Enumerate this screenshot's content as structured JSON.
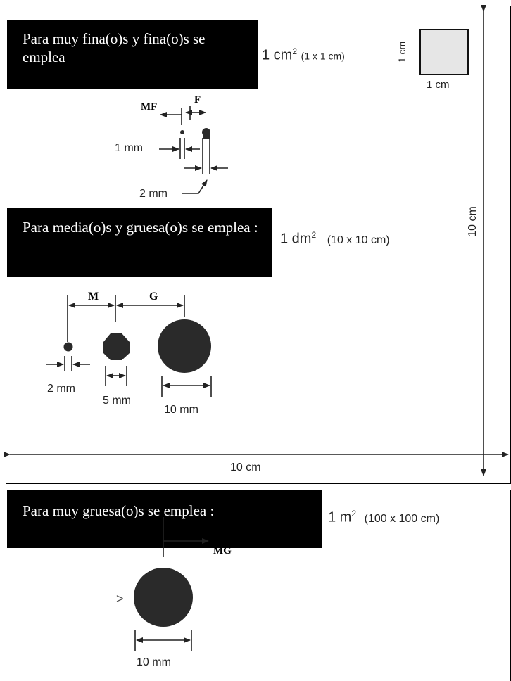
{
  "section_fine": {
    "text": "Para muy fina(o)s y fina(o)s se emplea",
    "area_main": "1 cm",
    "area_exp": "2",
    "area_dims": "(1 x 1 cm)",
    "square_side_label": "1 cm",
    "square_bottom_label": "1 cm",
    "label_mf": "MF",
    "label_f": "F",
    "dim_1mm": "1 mm",
    "dim_2mm": "2 mm"
  },
  "section_medium": {
    "text": "Para media(o)s y gruesa(o)s se emplea :",
    "area_main": "1 dm",
    "area_exp": "2",
    "area_dims": "(10 x 10 cm)",
    "label_m": "M",
    "label_g": "G",
    "dim_2mm": "2 mm",
    "dim_5mm": "5 mm",
    "dim_10mm": "10 mm",
    "vertical_dim": "10 cm",
    "horizontal_dim": "10 cm"
  },
  "section_coarse": {
    "text": "Para muy gruesa(o)s se emplea :",
    "area_main": "1 m",
    "area_exp": "2",
    "area_dims": "(100 x 100 cm)",
    "label_mg": "MG",
    "gt_symbol": ">",
    "dim_10mm": "10 mm"
  },
  "colors": {
    "ink": "#000000",
    "fill_gray": "#e6e6e6",
    "dot": "#2a2a2a"
  }
}
